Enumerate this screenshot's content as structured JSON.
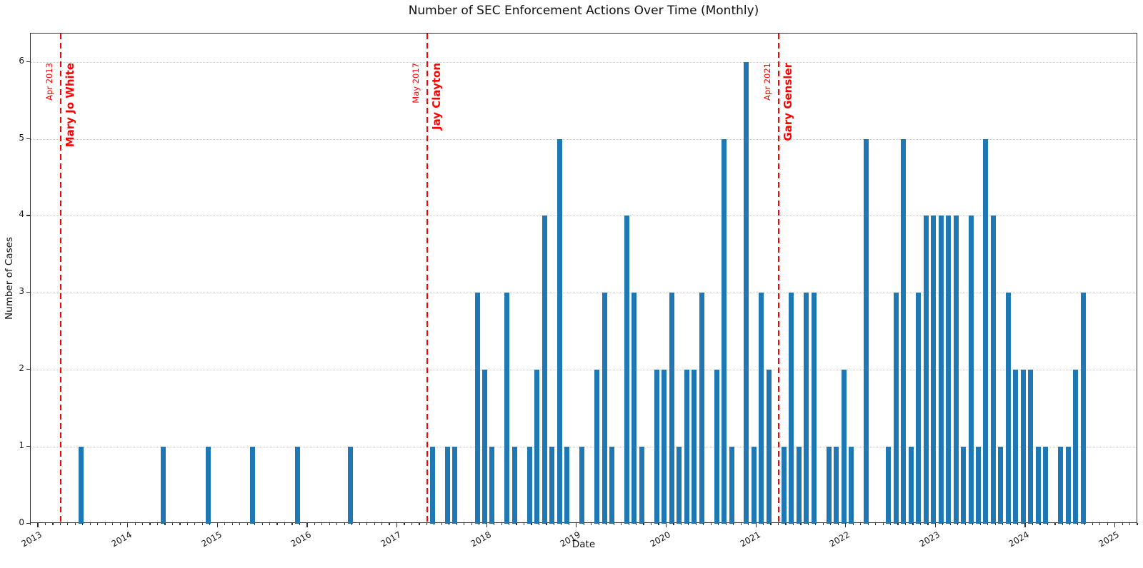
{
  "title": "Number of SEC Enforcement Actions Over Time (Monthly)",
  "xlabel": "Date",
  "ylabel": "Number of Cases",
  "colors": {
    "bar": "#1f77b4",
    "event_line": "#ff0000",
    "event_text": "#ff0000",
    "grid": "#c9c9c9",
    "text": "#111111",
    "spine": "#303030"
  },
  "chart_data": {
    "type": "bar",
    "title": "Number of SEC Enforcement Actions Over Time (Monthly)",
    "xlabel": "Date",
    "ylabel": "Number of Cases",
    "x_tick_labels": [
      "2013",
      "2014",
      "2015",
      "2016",
      "2017",
      "2018",
      "2019",
      "2020",
      "2021",
      "2022",
      "2023",
      "2024",
      "2025"
    ],
    "y_tick_labels": [
      "0",
      "1",
      "2",
      "3",
      "4",
      "5",
      "6"
    ],
    "ylim": [
      0,
      6.4
    ],
    "xlim": [
      "2012-10",
      "2025-04"
    ],
    "grid": "horizontal dotted, monthly minor ticks on x axis",
    "legend": "none",
    "x": [
      "2013-07",
      "2014-06",
      "2014-12",
      "2015-06",
      "2015-12",
      "2016-07",
      "2017-06",
      "2017-08",
      "2017-09",
      "2017-12",
      "2018-01",
      "2018-02",
      "2018-04",
      "2018-05",
      "2018-07",
      "2018-08",
      "2018-09",
      "2018-10",
      "2018-11",
      "2018-12",
      "2019-02",
      "2019-04",
      "2019-05",
      "2019-06",
      "2019-08",
      "2019-09",
      "2019-10",
      "2019-12",
      "2020-01",
      "2020-02",
      "2020-03",
      "2020-04",
      "2020-05",
      "2020-06",
      "2020-08",
      "2020-09",
      "2020-10",
      "2020-12",
      "2021-01",
      "2021-02",
      "2021-03",
      "2021-05",
      "2021-06",
      "2021-07",
      "2021-08",
      "2021-09",
      "2021-11",
      "2021-12",
      "2022-01",
      "2022-02",
      "2022-04",
      "2022-07",
      "2022-08",
      "2022-09",
      "2022-10",
      "2022-11",
      "2022-12",
      "2023-01",
      "2023-02",
      "2023-03",
      "2023-04",
      "2023-05",
      "2023-06",
      "2023-07",
      "2023-08",
      "2023-09",
      "2023-10",
      "2023-11",
      "2023-12",
      "2024-01",
      "2024-02",
      "2024-03",
      "2024-04",
      "2024-06",
      "2024-07",
      "2024-08",
      "2024-09"
    ],
    "values": [
      1,
      1,
      1,
      1,
      1,
      1,
      1,
      1,
      1,
      3,
      2,
      1,
      3,
      1,
      1,
      2,
      4,
      1,
      5,
      1,
      1,
      2,
      3,
      1,
      4,
      3,
      1,
      2,
      2,
      3,
      1,
      2,
      2,
      3,
      2,
      5,
      1,
      6,
      1,
      3,
      2,
      1,
      3,
      1,
      3,
      3,
      1,
      1,
      2,
      1,
      5,
      1,
      3,
      5,
      1,
      3,
      4,
      4,
      4,
      4,
      4,
      1,
      4,
      1,
      5,
      4,
      1,
      3,
      2,
      2,
      2,
      1,
      1,
      1,
      1,
      2,
      3
    ],
    "annotations": [
      {
        "date": "2013-04",
        "date_label": "Apr 2013",
        "name": "Mary Jo White"
      },
      {
        "date": "2017-05",
        "date_label": "May 2017",
        "name": "Jay Clayton"
      },
      {
        "date": "2021-04",
        "date_label": "Apr 2021",
        "name": "Gary Gensler"
      }
    ]
  }
}
